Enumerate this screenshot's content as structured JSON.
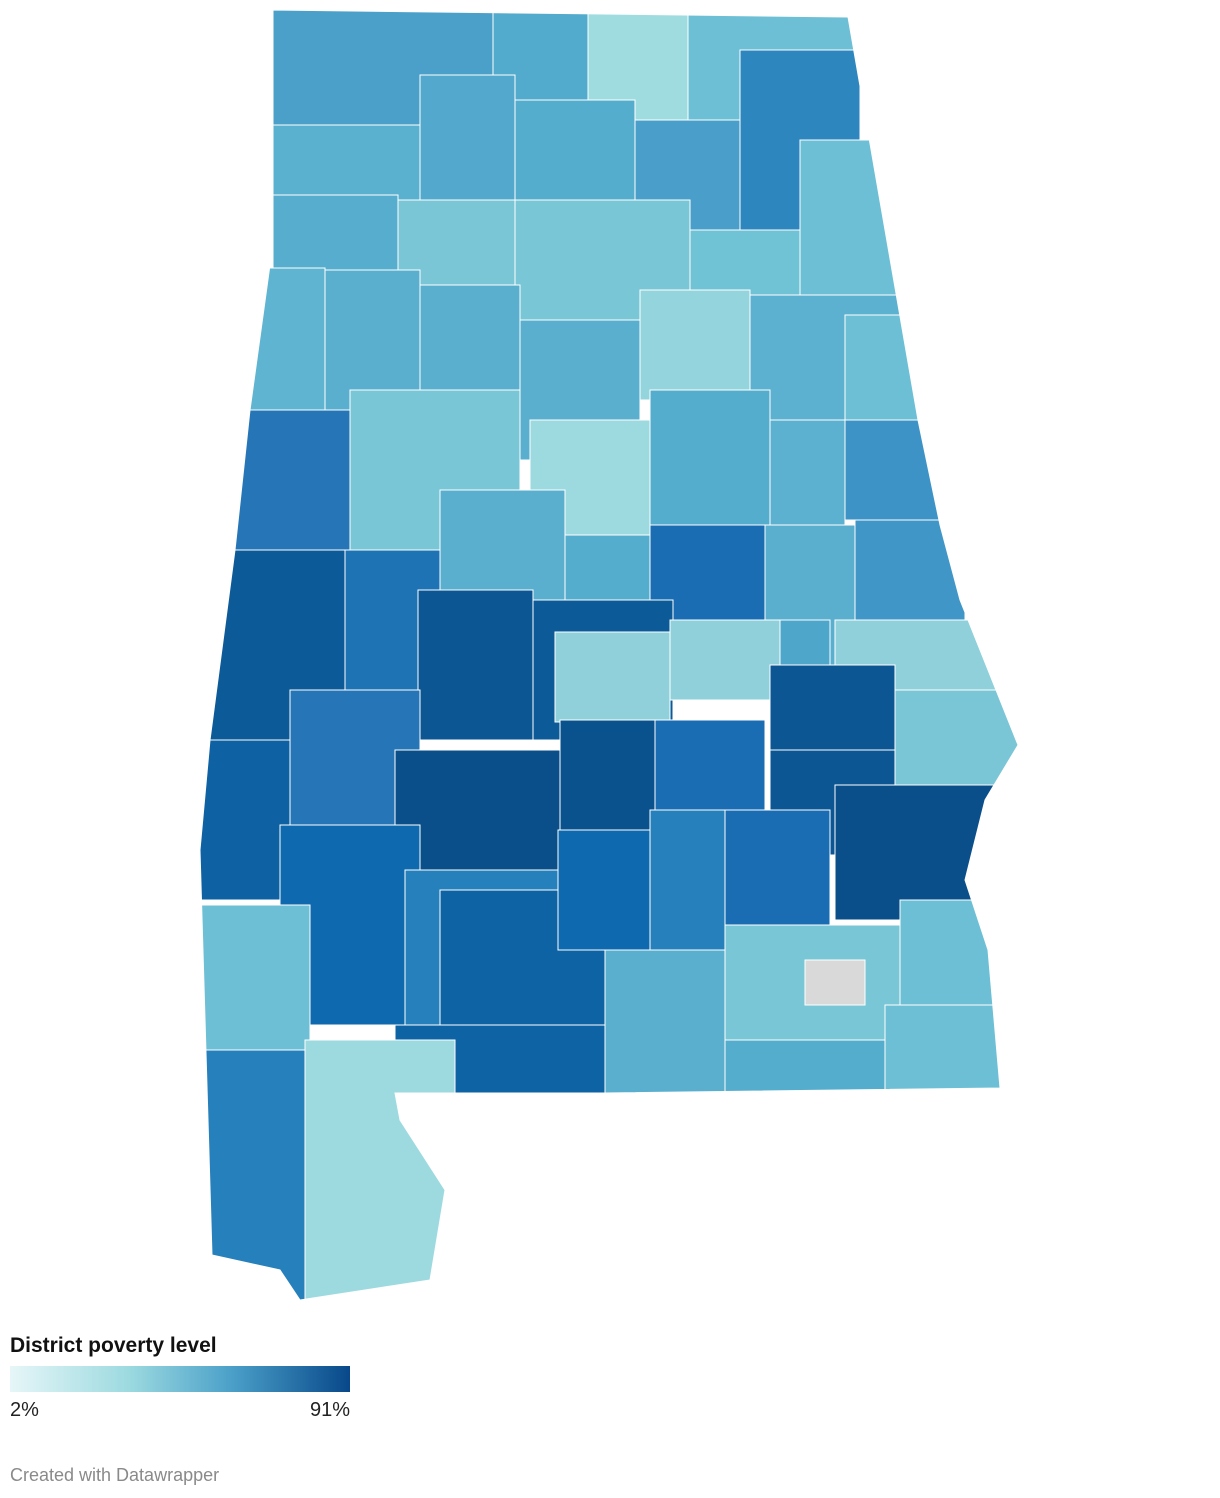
{
  "legend": {
    "title": "District poverty level",
    "min_label": "2%",
    "max_label": "91%"
  },
  "footer": "Created with Datawrapper"
}
